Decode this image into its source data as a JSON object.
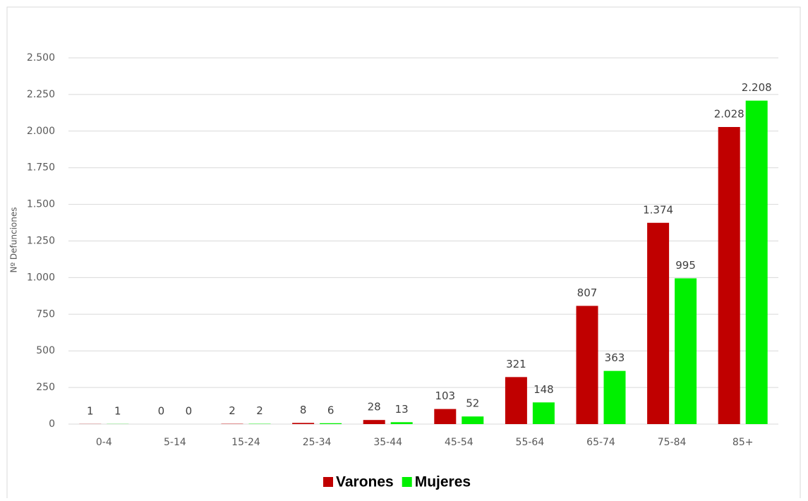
{
  "chart_data": {
    "type": "bar",
    "y_label": "Nº Defunciones",
    "categories": [
      "0-4",
      "5-14",
      "15-24",
      "25-34",
      "35-44",
      "45-54",
      "55-64",
      "65-74",
      "75-84",
      "85+"
    ],
    "series": [
      {
        "name": "Varones",
        "color": "#c00000",
        "values": [
          1,
          0,
          2,
          8,
          28,
          103,
          321,
          807,
          1374,
          2028
        ],
        "value_labels": [
          "1",
          "0",
          "2",
          "8",
          "28",
          "103",
          "321",
          "807",
          "1.374",
          "2.028"
        ]
      },
      {
        "name": "Mujeres",
        "color": "#00f000",
        "values": [
          1,
          0,
          2,
          6,
          13,
          52,
          148,
          363,
          995,
          2208
        ],
        "value_labels": [
          "1",
          "0",
          "2",
          "6",
          "13",
          "52",
          "148",
          "363",
          "995",
          "2.208"
        ]
      }
    ],
    "ylim": [
      0,
      2500
    ],
    "yticks": [
      0,
      250,
      500,
      750,
      {
        "value": 1000,
        "label": "1.000"
      },
      {
        "value": 1250,
        "label": "1.250"
      },
      {
        "value": 1500,
        "label": "1.500"
      },
      {
        "value": 1750,
        "label": "1.750"
      },
      {
        "value": 2000,
        "label": "2.000"
      },
      {
        "value": 2250,
        "label": "2.250"
      },
      {
        "value": 2500,
        "label": "2.500"
      }
    ],
    "grid": true,
    "legend": "bottom"
  }
}
